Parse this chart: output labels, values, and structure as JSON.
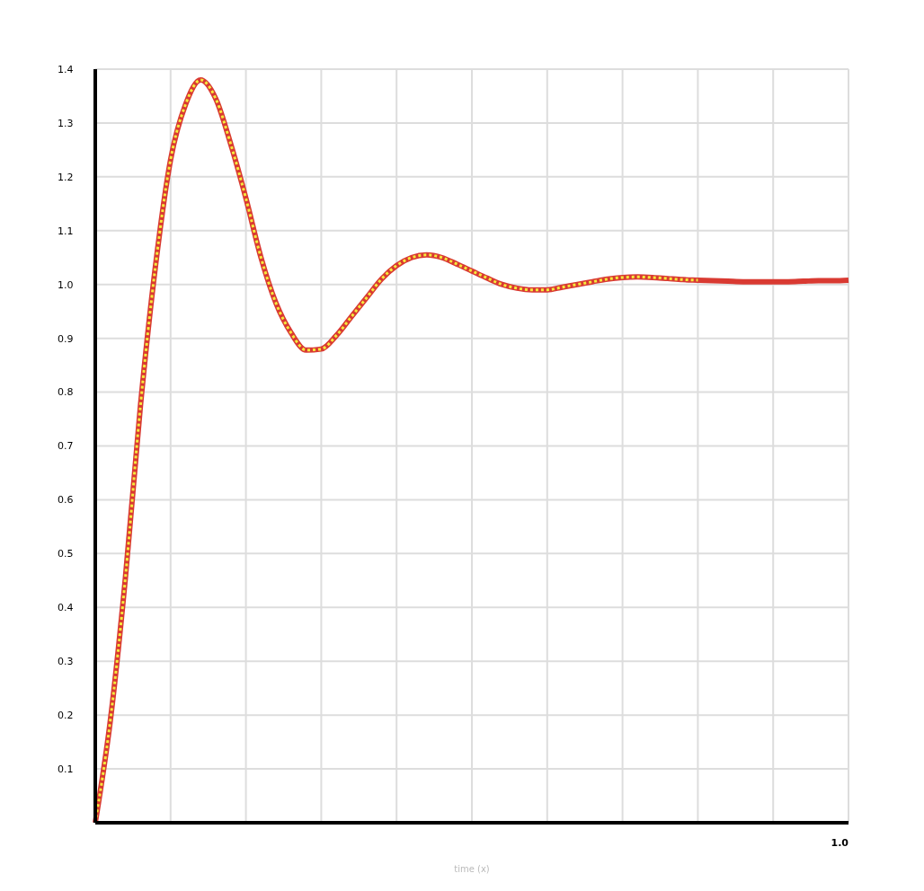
{
  "chart_data": {
    "type": "line",
    "categories": [
      null,
      null,
      null,
      null,
      null,
      null,
      null,
      null,
      null,
      null,
      null,
      null,
      null,
      null,
      null,
      null,
      null,
      null,
      null,
      null,
      null,
      null,
      null,
      null,
      null,
      null,
      null,
      null,
      null,
      null,
      null,
      null,
      null,
      null,
      null,
      null,
      null,
      null,
      null,
      null,
      null,
      null,
      null,
      null,
      null,
      null,
      null,
      null,
      null,
      null,
      null
    ],
    "series": [
      {
        "color": "#d93a32",
        "line_style": "solid",
        "values": [
          0,
          0.19,
          0.455,
          0.775,
          1.035,
          1.232,
          1.335,
          1.38,
          1.345,
          1.26,
          1.16,
          1.05,
          0.965,
          0.91,
          0.878,
          0.88,
          0.905,
          0.94,
          0.975,
          1.01,
          1.035,
          1.05,
          1.055,
          1.05,
          1.038,
          1.025,
          1.012,
          1.0,
          0.993,
          0.99,
          0.99,
          0.995,
          1.0,
          1.005,
          1.01,
          1.013,
          1.014,
          1.013,
          1.011,
          1.009,
          1.008,
          1.007,
          1.006,
          1.005,
          1.005,
          1.005,
          1.005,
          1.006,
          1.007,
          1.007,
          1.008
        ]
      },
      {
        "color": "#f5ea3c",
        "line_style": "dotted",
        "values": [
          0,
          0.19,
          0.455,
          0.775,
          1.035,
          1.232,
          1.335,
          1.38,
          1.345,
          1.26,
          1.16,
          1.05,
          0.965,
          0.91,
          0.878,
          0.88,
          0.905,
          0.94,
          0.975,
          1.01,
          1.035,
          1.05,
          1.055,
          1.05,
          1.038,
          1.025,
          1.012,
          1.0,
          0.993,
          0.99,
          0.99,
          0.995,
          1.0,
          1.005,
          1.01,
          1.013,
          1.014,
          1.013,
          1.011,
          1.009,
          1.008,
          null,
          null,
          null,
          null,
          null,
          null,
          null,
          null,
          null,
          null
        ]
      }
    ],
    "annotations": [
      "1.0",
      "time (x)"
    ],
    "ylim": [
      0,
      1.4
    ],
    "yticks": [
      0.1,
      0.2,
      0.3,
      0.4,
      0.5,
      0.6,
      0.7,
      0.8,
      0.9,
      {
        "value": 1.0,
        "label": "1.0"
      },
      1.1,
      1.2,
      1.3,
      1.4
    ],
    "grid": true,
    "legend": false,
    "marker": "none"
  }
}
